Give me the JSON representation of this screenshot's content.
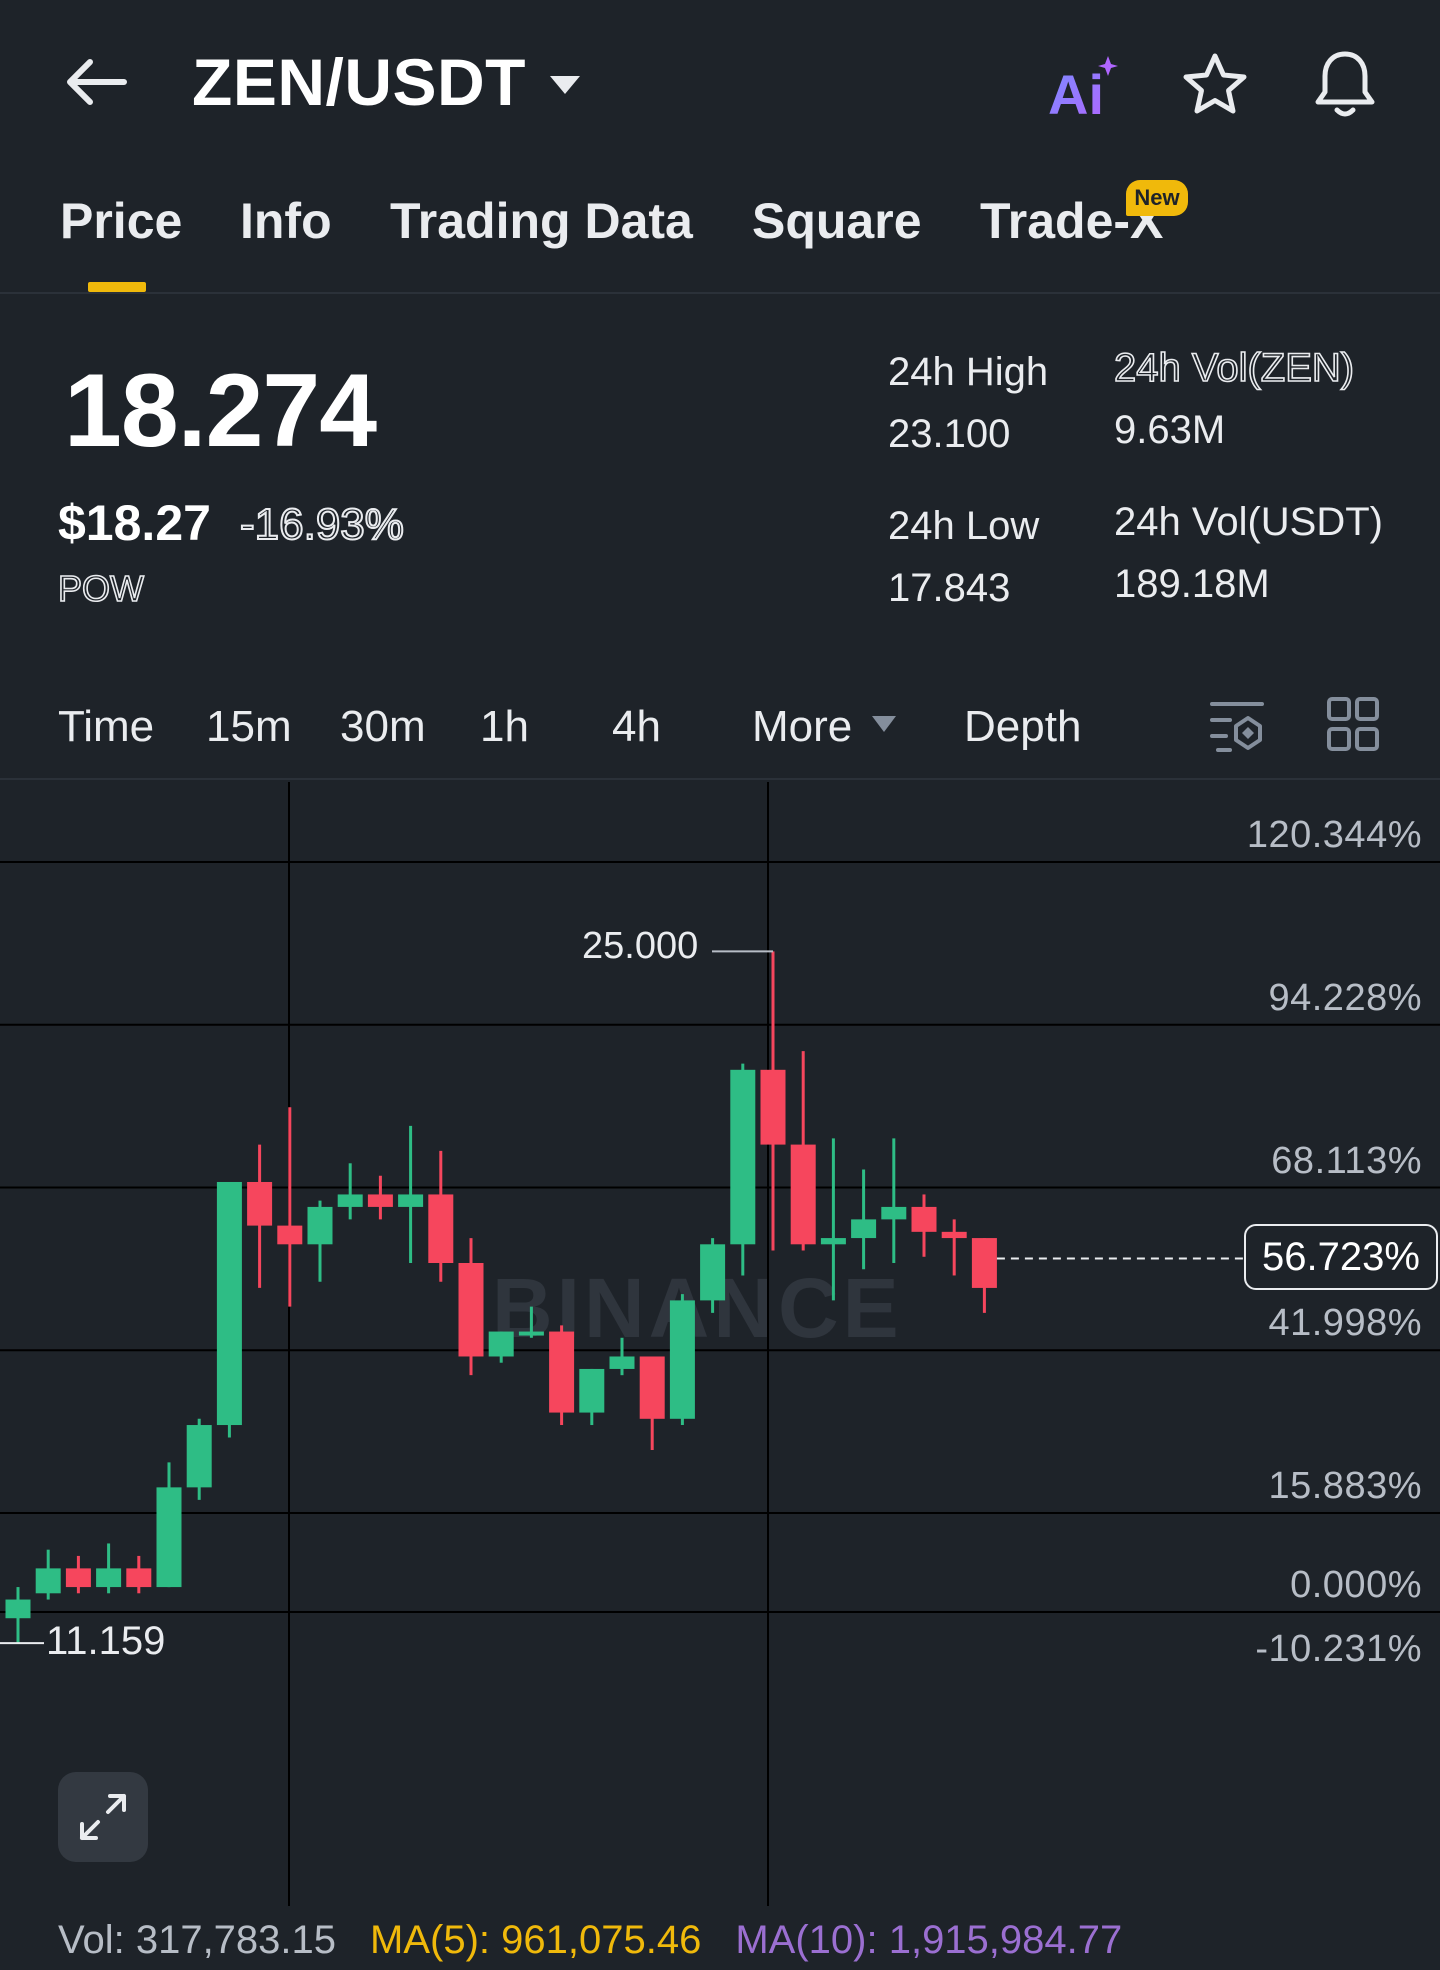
{
  "header": {
    "pair": "ZEN/USDT",
    "icons": [
      "back-arrow-icon",
      "caret-down-icon",
      "ai-icon",
      "star-icon",
      "bell-icon"
    ],
    "ai_label": "Ai"
  },
  "tabs": [
    {
      "label": "Price",
      "active": true
    },
    {
      "label": "Info"
    },
    {
      "label": "Trading Data"
    },
    {
      "label": "Square"
    },
    {
      "label": "Trade-X",
      "badge": "New"
    }
  ],
  "summary": {
    "last_price": "18.274",
    "usd_price": "$18.27",
    "change": "-16.93%",
    "tag": "POW",
    "high_label": "24h High",
    "high_value": "23.100",
    "low_label": "24h Low",
    "low_value": "17.843",
    "vol_base_label": "24h Vol(ZEN)",
    "vol_base_value": "9.63M",
    "vol_quote_label": "24h Vol(USDT)",
    "vol_quote_value": "189.18M"
  },
  "intervals": {
    "items": [
      "Time",
      "15m",
      "30m",
      "1h",
      "4h",
      "More",
      "Depth"
    ],
    "icons": [
      "caret-down-icon",
      "chart-settings-icon",
      "grid-icon"
    ]
  },
  "chart_data": {
    "type": "candlestick",
    "y_axis_labels": [
      "120.344%",
      "94.228%",
      "68.113%",
      "41.998%",
      "15.883%",
      "0.000%",
      "-10.231%"
    ],
    "y_axis_values": [
      120.344,
      94.228,
      68.113,
      41.998,
      15.883,
      0.0,
      -10.231
    ],
    "current_value_label": "56.723%",
    "current_value": 56.723,
    "high_marker": "25.000",
    "low_marker": "11.159",
    "watermark": "BINANCE",
    "colors": {
      "up": "#2ebd85",
      "down": "#f6465d",
      "grid": "#000000",
      "background": "#1e2329"
    },
    "candles_pct": [
      {
        "o": -1,
        "h": 4,
        "l": -5,
        "c": 2
      },
      {
        "o": 3,
        "h": 10,
        "l": 2,
        "c": 7
      },
      {
        "o": 7,
        "h": 9,
        "l": 3,
        "c": 4
      },
      {
        "o": 4,
        "h": 11,
        "l": 3,
        "c": 7
      },
      {
        "o": 7,
        "h": 9,
        "l": 3,
        "c": 4
      },
      {
        "o": 4,
        "h": 24,
        "l": 4,
        "c": 20
      },
      {
        "o": 20,
        "h": 31,
        "l": 18,
        "c": 30
      },
      {
        "o": 30,
        "h": 69,
        "l": 28,
        "c": 69
      },
      {
        "o": 69,
        "h": 75,
        "l": 52,
        "c": 62
      },
      {
        "o": 62,
        "h": 81,
        "l": 49,
        "c": 59
      },
      {
        "o": 59,
        "h": 66,
        "l": 53,
        "c": 65
      },
      {
        "o": 65,
        "h": 72,
        "l": 63,
        "c": 67
      },
      {
        "o": 67,
        "h": 70,
        "l": 63,
        "c": 65
      },
      {
        "o": 65,
        "h": 78,
        "l": 56,
        "c": 67
      },
      {
        "o": 67,
        "h": 74,
        "l": 53,
        "c": 56
      },
      {
        "o": 56,
        "h": 60,
        "l": 38,
        "c": 41
      },
      {
        "o": 41,
        "h": 45,
        "l": 40,
        "c": 45
      },
      {
        "o": 45,
        "h": 49,
        "l": 44,
        "c": 45
      },
      {
        "o": 45,
        "h": 46,
        "l": 30,
        "c": 32
      },
      {
        "o": 32,
        "h": 39,
        "l": 30,
        "c": 39
      },
      {
        "o": 39,
        "h": 44,
        "l": 38,
        "c": 41
      },
      {
        "o": 41,
        "h": 41,
        "l": 26,
        "c": 31
      },
      {
        "o": 31,
        "h": 51,
        "l": 30,
        "c": 50
      },
      {
        "o": 50,
        "h": 60,
        "l": 48,
        "c": 59
      },
      {
        "o": 59,
        "h": 88,
        "l": 54,
        "c": 87
      },
      {
        "o": 87,
        "h": 106,
        "l": 58,
        "c": 75
      },
      {
        "o": 75,
        "h": 90,
        "l": 58,
        "c": 59
      },
      {
        "o": 59,
        "h": 76,
        "l": 50,
        "c": 60
      },
      {
        "o": 60,
        "h": 71,
        "l": 55,
        "c": 63
      },
      {
        "o": 63,
        "h": 76,
        "l": 56,
        "c": 65
      },
      {
        "o": 65,
        "h": 67,
        "l": 57,
        "c": 61
      },
      {
        "o": 61,
        "h": 63,
        "l": 54,
        "c": 60
      },
      {
        "o": 60,
        "h": 60,
        "l": 48,
        "c": 52
      }
    ]
  },
  "volume": {
    "vol": "Vol: 317,783.15",
    "ma5": "MA(5): 961,075.46",
    "ma10": "MA(10): 1,915,984.77"
  }
}
